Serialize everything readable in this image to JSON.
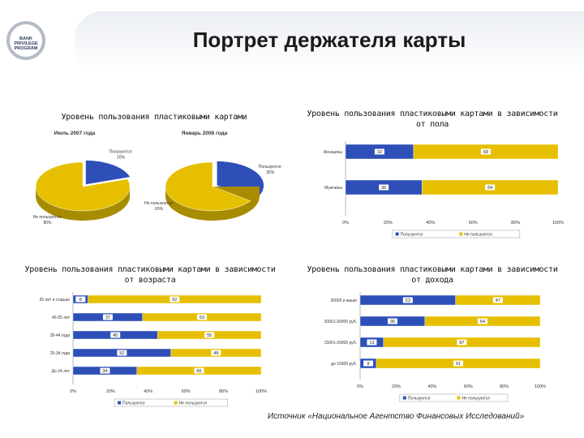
{
  "page": {
    "title": "Портрет держателя карты",
    "logo_text": "BANK PRIVILEGE PROGRAM",
    "source": "Источник «Национальное Агентство Финансовых Исследований»"
  },
  "colors": {
    "use": "#2e4fb8",
    "nonuse": "#e6c000"
  },
  "chart_data": [
    {
      "type": "pie",
      "title": "Уровень пользования пластиковыми картами",
      "pies": [
        {
          "title": "Июль 2007 года",
          "slices": [
            {
              "label": "Пользуются",
              "value": 20,
              "text": "20%",
              "color": "#2e4fb8"
            },
            {
              "label": "Не пользуются",
              "value": 80,
              "text": "80%",
              "color": "#e6c000"
            }
          ]
        },
        {
          "title": "Январь 2008 года",
          "slices": [
            {
              "label": "Пользуются",
              "value": 35,
              "text": "35%",
              "color": "#2e4fb8"
            },
            {
              "label": "Не пользуются",
              "value": 65,
              "text": "65%",
              "color": "#e6c000"
            }
          ]
        }
      ]
    },
    {
      "type": "bar",
      "title": "Уровень пользования пластиковыми картами в зависимости от пола",
      "categories": [
        "Женщины",
        "Мужчины"
      ],
      "series": [
        {
          "name": "Пользуются",
          "values": [
            32,
            36
          ],
          "color": "#2e4fb8"
        },
        {
          "name": "Не пользуются",
          "values": [
            68,
            64
          ],
          "color": "#e6c000"
        }
      ],
      "xticks": [
        "0%",
        "20%",
        "40%",
        "60%",
        "80%",
        "100%"
      ],
      "xlim": [
        0,
        100
      ]
    },
    {
      "type": "bar",
      "title": "Уровень пользования пластиковыми картами в зависимости от возраста",
      "categories": [
        "55 лет и старше",
        "45-55 лет",
        "35-44 года",
        "25-34 года",
        "До 24 лет"
      ],
      "series": [
        {
          "name": "Пользуются",
          "values": [
            8,
            37,
            45,
            52,
            34
          ],
          "color": "#2e4fb8"
        },
        {
          "name": "Не пользуются",
          "values": [
            92,
            63,
            55,
            48,
            66
          ],
          "color": "#e6c000"
        }
      ],
      "xticks": [
        "0%",
        "20%",
        "40%",
        "60%",
        "80%",
        "100%"
      ],
      "xlim": [
        0,
        100
      ]
    },
    {
      "type": "bar",
      "title": "Уровень пользования пластиковыми картами в зависимости от дохода",
      "categories": [
        "30000 и выше",
        "20001-30000 руб.",
        "15001-20000 руб.",
        "до 15000 руб."
      ],
      "series": [
        {
          "name": "Пользуются",
          "values": [
            53,
            36,
            13,
            9
          ],
          "color": "#2e4fb8"
        },
        {
          "name": "Не пользуются",
          "values": [
            47,
            64,
            87,
            91
          ],
          "color": "#e6c000"
        }
      ],
      "xticks": [
        "0%",
        "20%",
        "40%",
        "60%",
        "80%",
        "100%"
      ],
      "xlim": [
        0,
        100
      ]
    }
  ]
}
